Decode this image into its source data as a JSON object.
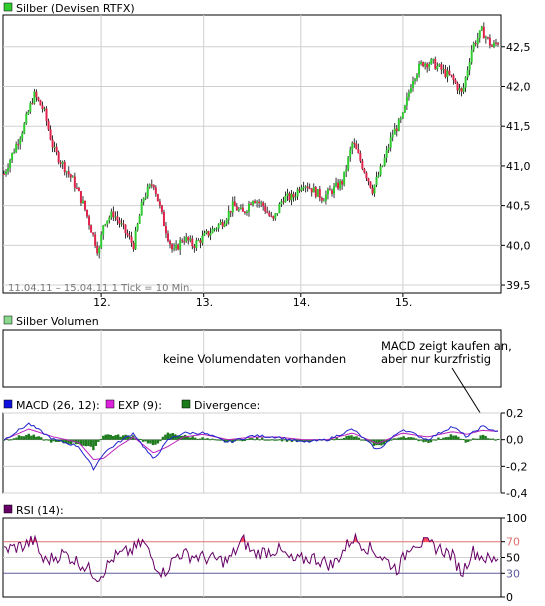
{
  "colors": {
    "up": "#2ecc2e",
    "down": "#e0224a",
    "wick": "#000000",
    "grid": "#d0d0d0",
    "frame": "#000000",
    "macd": "#2222cc",
    "exp": "#bb22bb",
    "divergence": "#1d7a1d",
    "rsi": "#660066",
    "rsi_over": "#ff4455",
    "rsi_70_line": "#e07070",
    "rsi_30_line": "#5c5c99",
    "swatch_price": "#2ecc2e",
    "swatch_volume": "#8bd88b",
    "swatch_macd": "#1111dd",
    "swatch_exp": "#dd22dd",
    "swatch_div": "#1a7a1a",
    "swatch_rsi": "#660066"
  },
  "price_panel": {
    "legend": "Silber (Devisen RTFX)",
    "range_label": "11.04.11 – 15.04.11   1 Tick = 10 Min.",
    "y_ticks": [
      "42,5",
      "42,0",
      "41,5",
      "41,0",
      "40,5",
      "40,0",
      "39,5"
    ],
    "x_ticks": [
      "12.",
      "13.",
      "14.",
      "15."
    ]
  },
  "volume_panel": {
    "legend": "Silber Volumen",
    "message": "keine Volumendaten vorhanden",
    "note_line1": "MACD zeigt kaufen an,",
    "note_line2": "aber nur kurzfristig"
  },
  "macd_panel": {
    "legend_macd": "MACD (26, 12):",
    "legend_exp": "EXP (9):",
    "legend_div": "Divergence:",
    "y_ticks": [
      "0,2",
      "0,0",
      "-0,2",
      "-0,4"
    ]
  },
  "rsi_panel": {
    "legend": "RSI (14):",
    "y_ticks": [
      "100",
      "70",
      "50",
      "30",
      "0"
    ]
  },
  "chart_data": {
    "type": "line",
    "title": "Silber (Devisen RTFX)",
    "xlabel": "",
    "ylabel": "",
    "x_range": "11.04.11 – 15.04.11",
    "interval": "10 Min.",
    "x_axis_labels": [
      "12.",
      "13.",
      "14.",
      "15."
    ],
    "ylim": [
      39.4,
      42.9
    ],
    "series": [
      {
        "name": "Silber",
        "style": "candlestick",
        "x": [
          0,
          2,
          4,
          6,
          8,
          10,
          12,
          14,
          16,
          18,
          19,
          20,
          22,
          24,
          26,
          28,
          30,
          32,
          34,
          36,
          38,
          40,
          42,
          44,
          46,
          48,
          50,
          52,
          54,
          56,
          58,
          60,
          62,
          64,
          66,
          68,
          70,
          72,
          74,
          76,
          78,
          80,
          82,
          84,
          86,
          88,
          90,
          92,
          94,
          96,
          98,
          100
        ],
        "values": [
          40.9,
          41.2,
          41.5,
          41.9,
          41.7,
          41.2,
          41.0,
          40.8,
          40.5,
          40.1,
          39.9,
          40.3,
          40.4,
          40.2,
          40.0,
          40.6,
          40.8,
          40.3,
          39.9,
          40.1,
          40.0,
          40.1,
          40.2,
          40.3,
          40.5,
          40.4,
          40.6,
          40.5,
          40.3,
          40.6,
          40.6,
          40.8,
          40.7,
          40.6,
          40.7,
          40.8,
          41.3,
          41.0,
          40.7,
          41.0,
          41.4,
          41.6,
          42.1,
          42.3,
          42.3,
          42.2,
          42.1,
          41.9,
          42.5,
          42.7,
          42.5,
          42.6
        ]
      },
      {
        "name": "MACD (26, 12)",
        "x": [
          0,
          5,
          10,
          15,
          18,
          20,
          23,
          26,
          30,
          33,
          36,
          40,
          45,
          50,
          55,
          60,
          65,
          70,
          75,
          80,
          85,
          90,
          93,
          96,
          100
        ],
        "values": [
          0.0,
          0.12,
          0.0,
          -0.05,
          -0.22,
          -0.1,
          -0.02,
          0.05,
          -0.15,
          0.0,
          0.05,
          0.05,
          -0.02,
          0.03,
          0.02,
          -0.02,
          0.0,
          0.08,
          -0.08,
          0.08,
          0.0,
          0.1,
          0.02,
          0.1,
          0.05
        ]
      },
      {
        "name": "EXP (9)",
        "x": [
          0,
          5,
          10,
          15,
          18,
          20,
          23,
          26,
          30,
          33,
          36,
          40,
          45,
          50,
          55,
          60,
          65,
          70,
          75,
          80,
          85,
          90,
          93,
          96,
          100
        ],
        "values": [
          0.0,
          0.08,
          0.02,
          -0.02,
          -0.15,
          -0.14,
          -0.05,
          0.02,
          -0.1,
          -0.05,
          0.02,
          0.04,
          0.0,
          0.02,
          0.02,
          0.0,
          0.0,
          0.05,
          -0.03,
          0.05,
          0.02,
          0.06,
          0.04,
          0.07,
          0.06
        ]
      },
      {
        "name": "RSI (14)",
        "x": [
          0,
          4,
          6,
          8,
          12,
          16,
          19,
          22,
          26,
          28,
          30,
          32,
          35,
          40,
          45,
          48,
          50,
          55,
          58,
          62,
          66,
          70,
          75,
          79,
          82,
          86,
          88,
          90,
          92,
          94,
          98,
          100
        ],
        "values": [
          60,
          65,
          72,
          45,
          55,
          40,
          25,
          50,
          60,
          70,
          45,
          30,
          55,
          50,
          45,
          72,
          55,
          60,
          45,
          50,
          40,
          75,
          55,
          35,
          70,
          65,
          60,
          52,
          30,
          58,
          45,
          55
        ]
      }
    ],
    "macd_ylim": [
      -0.4,
      0.2
    ],
    "rsi_ylim": [
      0,
      100
    ],
    "rsi_levels": [
      30,
      70
    ],
    "grid": true,
    "legend_position": "top-left"
  }
}
